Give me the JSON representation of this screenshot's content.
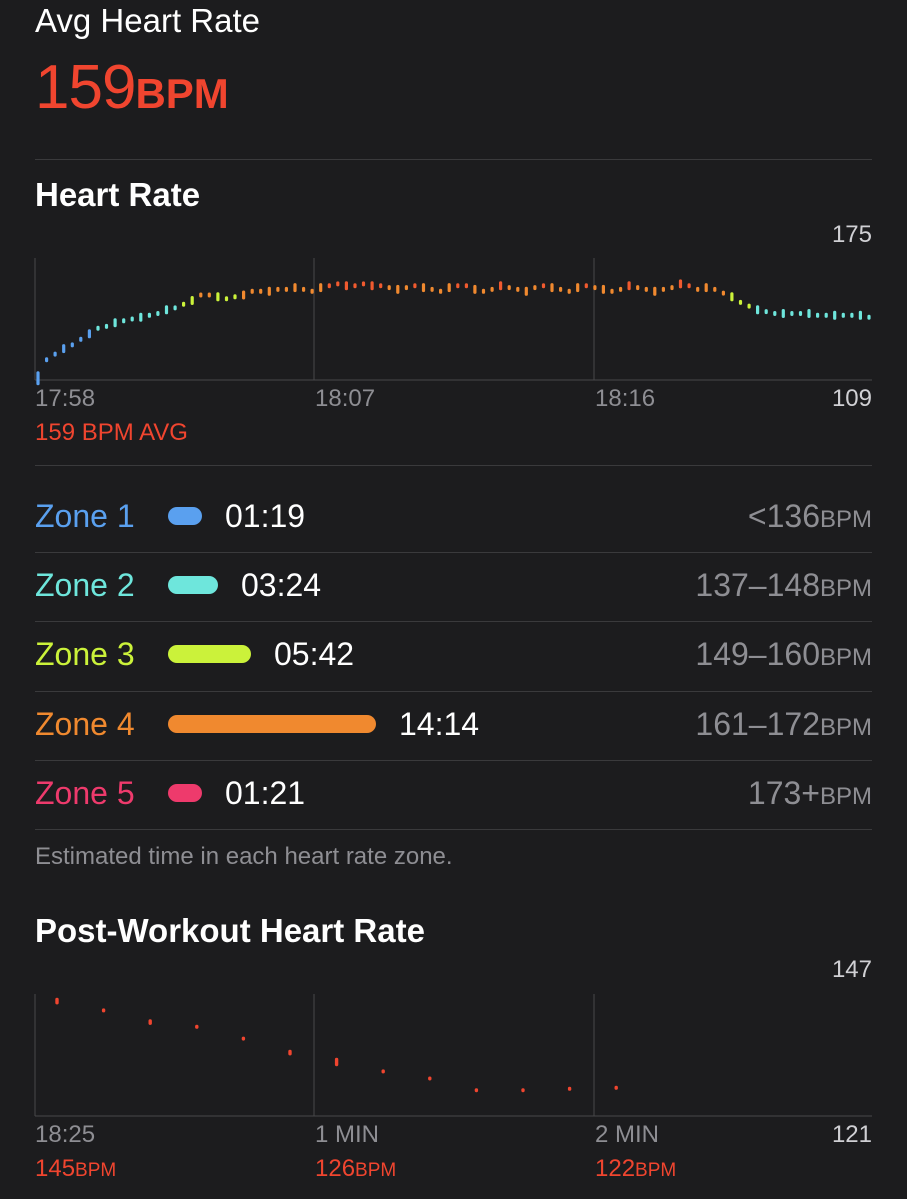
{
  "summary": {
    "label": "Avg Heart Rate",
    "value": "159",
    "unit": "BPM"
  },
  "heart_rate_section": {
    "title": "Heart Rate",
    "avg_caption": "159 BPM AVG"
  },
  "zones_section": {
    "zones": [
      {
        "label": "Zone 1",
        "time": "01:19",
        "range": "<136",
        "unit": "BPM",
        "color": "#5aa0ef",
        "minutes": 1.32
      },
      {
        "label": "Zone 2",
        "time": "03:24",
        "range": "137–148",
        "unit": "BPM",
        "color": "#6ee6dc",
        "minutes": 3.4
      },
      {
        "label": "Zone 3",
        "time": "05:42",
        "range": "149–160",
        "unit": "BPM",
        "color": "#cbf23a",
        "minutes": 5.7
      },
      {
        "label": "Zone 4",
        "time": "14:14",
        "range": "161–172",
        "unit": "BPM",
        "color": "#f0892f",
        "minutes": 14.23
      },
      {
        "label": "Zone 5",
        "time": "01:21",
        "range": "173+",
        "unit": "BPM",
        "color": "#ee3a6c",
        "minutes": 1.35
      }
    ],
    "note": "Estimated time in each heart rate zone."
  },
  "post_workout_section": {
    "title": "Post-Workout Heart Rate",
    "captions": [
      {
        "value": "145",
        "unit": "BPM"
      },
      {
        "value": "126",
        "unit": "BPM"
      },
      {
        "value": "122",
        "unit": "BPM"
      }
    ]
  },
  "chart_data": [
    {
      "type": "scatter",
      "title": "Heart Rate",
      "xlabel": "",
      "ylabel": "BPM",
      "ylim": [
        109,
        175
      ],
      "x_ticks": [
        "17:58",
        "18:07",
        "18:16"
      ],
      "y_max_label": "175",
      "y_min_label": "109",
      "zone_colors": {
        "z1": "#5aa0ef",
        "z2": "#6ee6dc",
        "z3": "#cbf23a",
        "z4": "#f0892f",
        "z5": "#ee3a6c",
        "z4b": "#f05a2f"
      },
      "values": [
        110,
        120,
        123,
        126,
        128,
        131,
        134,
        137,
        138,
        140,
        141,
        142,
        143,
        144,
        145,
        147,
        148,
        150,
        152,
        155,
        155,
        154,
        153,
        154,
        155,
        157,
        157,
        157,
        158,
        158,
        159,
        158,
        157,
        159,
        160,
        161,
        160,
        160,
        161,
        160,
        160,
        159,
        158,
        159,
        160,
        159,
        158,
        157,
        159,
        160,
        160,
        158,
        157,
        158,
        160,
        159,
        158,
        157,
        159,
        160,
        159,
        158,
        157,
        159,
        160,
        159,
        158,
        157,
        158,
        160,
        159,
        158,
        157,
        158,
        159,
        161,
        160,
        158,
        159,
        158,
        156,
        154,
        151,
        149,
        147,
        146,
        145,
        145,
        145,
        145,
        145,
        144,
        144,
        144,
        144,
        144,
        144,
        143
      ]
    },
    {
      "type": "scatter",
      "title": "Post-Workout Heart Rate",
      "xlabel": "",
      "ylabel": "BPM",
      "ylim": [
        121,
        147
      ],
      "x_ticks": [
        "18:25",
        "1 MIN",
        "2 MIN"
      ],
      "y_max_label": "147",
      "y_min_label": "121",
      "color": "#f0452f",
      "points": [
        {
          "v": 145.5,
          "h": 1.4
        },
        {
          "v": 143.5,
          "h": 0
        },
        {
          "v": 141.0,
          "h": 1.2
        },
        {
          "v": 140.0,
          "h": 0.6
        },
        {
          "v": 137.5,
          "h": 0
        },
        {
          "v": 134.5,
          "h": 1.2
        },
        {
          "v": 132.5,
          "h": 1.8
        },
        {
          "v": 130.5,
          "h": 0
        },
        {
          "v": 129.0,
          "h": 0
        },
        {
          "v": 126.5,
          "h": 0
        },
        {
          "v": 126.5,
          "h": 0.5
        },
        {
          "v": 126.8,
          "h": 0
        },
        {
          "v": 127.0,
          "h": 0
        }
      ]
    }
  ]
}
